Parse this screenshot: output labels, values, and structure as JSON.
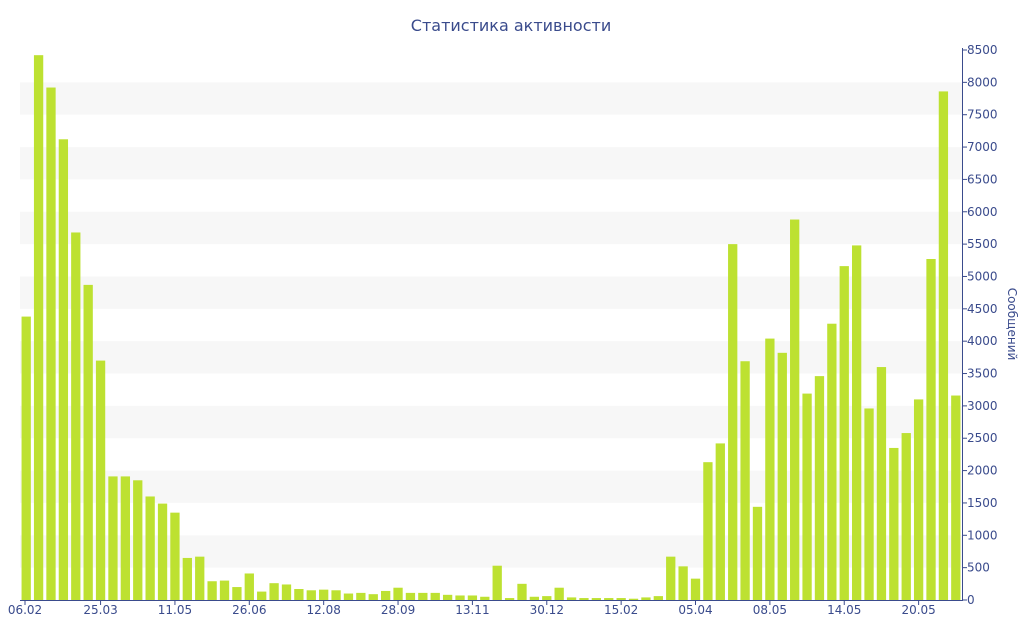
{
  "chart_data": {
    "type": "bar",
    "title": "Статистика активности",
    "xlabel": "",
    "ylabel": "Сообщений",
    "y_axis_side": "right",
    "ylim": [
      0,
      8500
    ],
    "yticks": [
      0,
      500,
      1000,
      1500,
      2000,
      2500,
      3000,
      3500,
      4000,
      4500,
      5000,
      5500,
      6000,
      6500,
      7000,
      7500,
      8000,
      8500
    ],
    "x_tick_labels": [
      {
        "label": "06.02",
        "index": 0
      },
      {
        "label": "25.03",
        "index": 6
      },
      {
        "label": "11.05",
        "index": 12
      },
      {
        "label": "26.06",
        "index": 18
      },
      {
        "label": "12.08",
        "index": 24
      },
      {
        "label": "28.09",
        "index": 30
      },
      {
        "label": "13.11",
        "index": 36
      },
      {
        "label": "30.12",
        "index": 42
      },
      {
        "label": "15.02",
        "index": 48
      },
      {
        "label": "05.04",
        "index": 54
      },
      {
        "label": "08.05",
        "index": 60
      },
      {
        "label": "14.05",
        "index": 66
      },
      {
        "label": "20.05",
        "index": 72
      }
    ],
    "values": [
      4380,
      8420,
      7920,
      7120,
      5680,
      4870,
      3700,
      1910,
      1910,
      1850,
      1600,
      1490,
      1350,
      650,
      670,
      290,
      300,
      200,
      410,
      130,
      260,
      240,
      170,
      150,
      160,
      150,
      100,
      110,
      90,
      140,
      190,
      110,
      110,
      110,
      80,
      70,
      70,
      50,
      530,
      30,
      250,
      50,
      60,
      190,
      40,
      30,
      30,
      30,
      30,
      20,
      40,
      60,
      670,
      520,
      330,
      2130,
      2420,
      5500,
      3690,
      1440,
      4040,
      3820,
      5880,
      3190,
      3460,
      4270,
      5160,
      5480,
      2960,
      3600,
      2350,
      2580,
      3100,
      5270,
      7860,
      3160
    ],
    "grid": "horizontal bands",
    "legend": "none",
    "colors": {
      "bar": "#bde131",
      "text": "#3a4b8c",
      "axis": "#3a4b8c",
      "band": "#f7f7f7"
    }
  }
}
